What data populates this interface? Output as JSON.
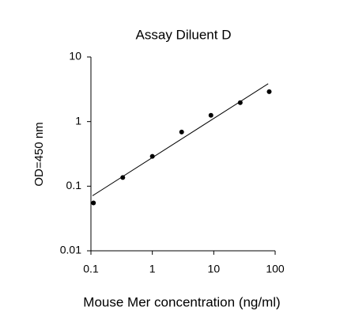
{
  "chart_data": {
    "type": "scatter",
    "title": "Assay Diluent D",
    "x_label": "Mouse Mer concentration (ng/ml)",
    "y_label": "OD=450 nm",
    "x": [
      0.11,
      0.33,
      1,
      3,
      9,
      27,
      80
    ],
    "values": [
      0.055,
      0.136,
      0.29,
      0.69,
      1.25,
      1.96,
      2.9
    ],
    "color": "#000000",
    "trendline": {
      "x": [
        0.106,
        77
      ],
      "values": [
        0.071,
        3.85
      ]
    },
    "xscale": "log",
    "yscale": "log",
    "xlim": [
      0.1,
      100
    ],
    "ylim": [
      0.01,
      10
    ],
    "xticks": [
      0.1,
      1,
      10,
      100
    ],
    "yticks": [
      0.01,
      0.1,
      1,
      10
    ],
    "grid": false
  }
}
